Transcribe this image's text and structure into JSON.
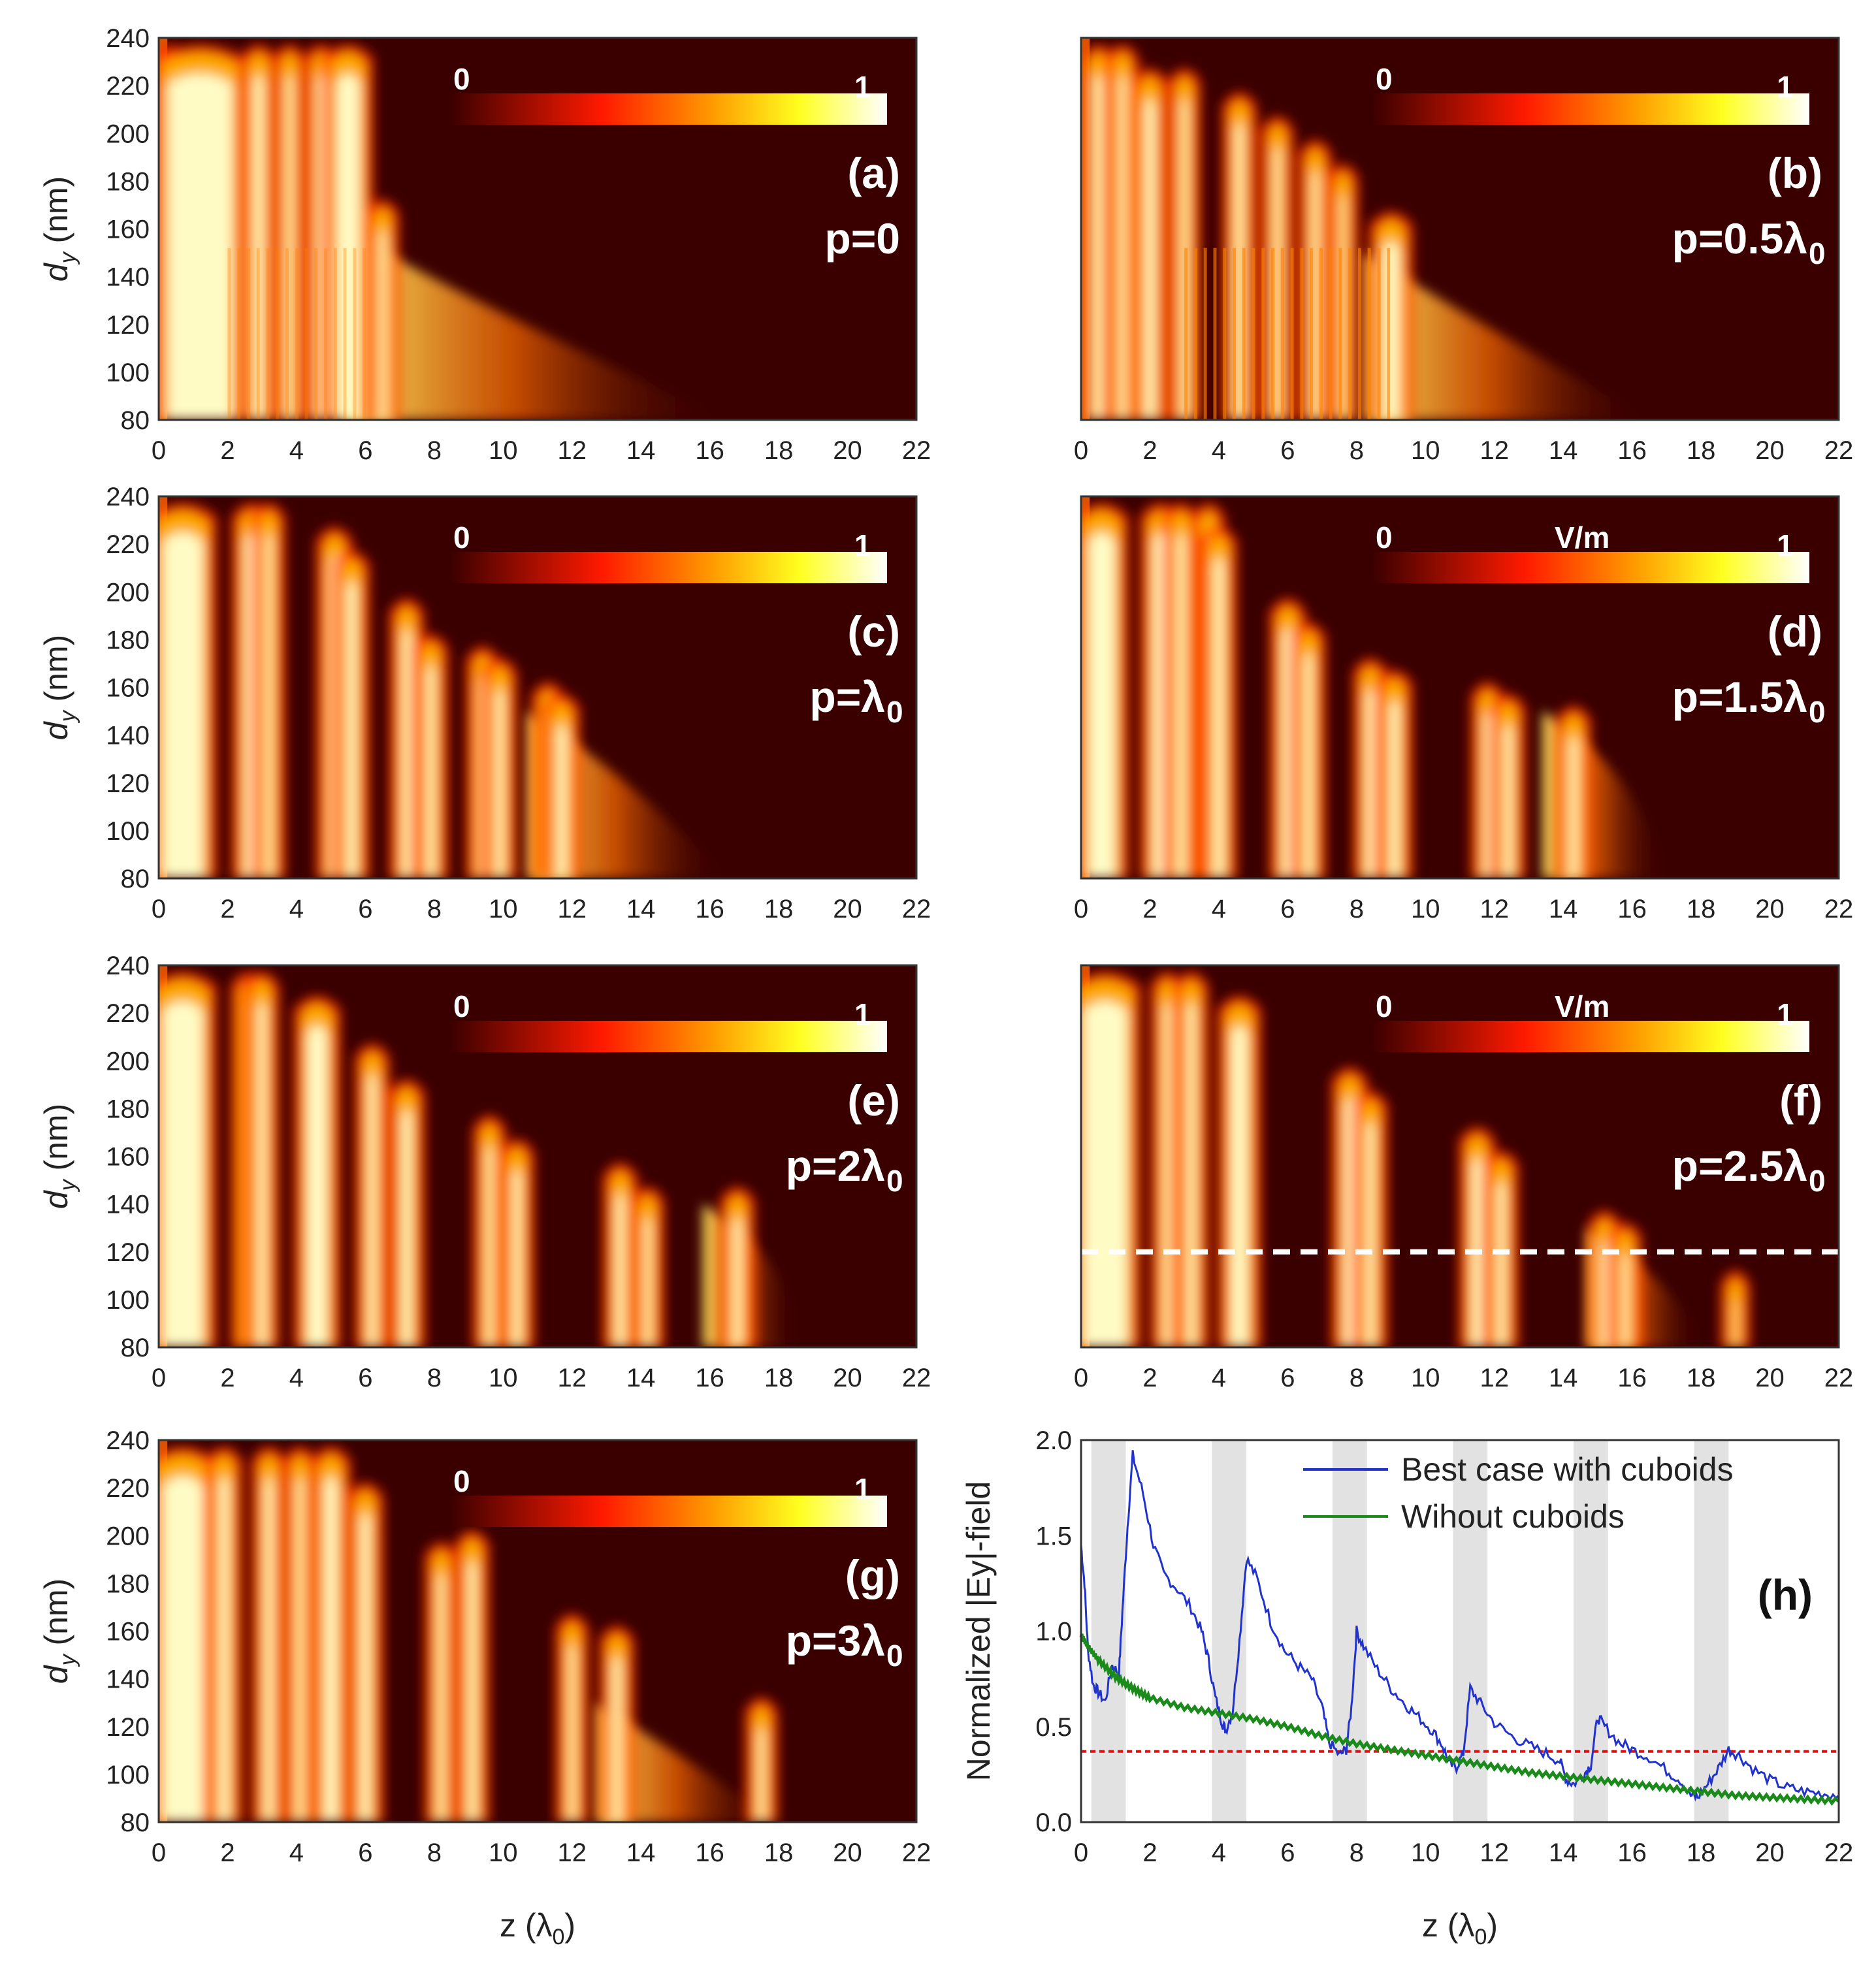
{
  "chart_data": [
    {
      "type": "heatmap",
      "id": "a",
      "label": "(a)",
      "param": "p=0",
      "param_sub": "",
      "xlabel": "",
      "ylabel": "d",
      "ylabel_sub": "y",
      "ylabel_unit": " (nm)",
      "xlim": [
        0,
        22
      ],
      "ylim": [
        80,
        240
      ],
      "xticks": [
        "0",
        "2",
        "4",
        "6",
        "8",
        "10",
        "12",
        "14",
        "16",
        "18",
        "20",
        "22"
      ],
      "yticks": [
        "80",
        "100",
        "120",
        "140",
        "160",
        "180",
        "200",
        "220",
        "240"
      ],
      "colorbar": {
        "min_label": "0",
        "max_label": "1",
        "unit": ""
      }
    },
    {
      "type": "heatmap",
      "id": "b",
      "label": "(b)",
      "param": "p=0.5λ",
      "param_sub": "0",
      "xlabel": "",
      "ylabel": "",
      "ylabel_sub": "",
      "ylabel_unit": "",
      "xlim": [
        0,
        22
      ],
      "ylim": [
        80,
        240
      ],
      "xticks": [
        "0",
        "2",
        "4",
        "6",
        "8",
        "10",
        "12",
        "14",
        "16",
        "18",
        "20",
        "22"
      ],
      "yticks": [],
      "colorbar": {
        "min_label": "0",
        "max_label": "1",
        "unit": ""
      }
    },
    {
      "type": "heatmap",
      "id": "c",
      "label": "(c)",
      "param": "p=λ",
      "param_sub": "0",
      "xlabel": "",
      "ylabel": "d",
      "ylabel_sub": "y",
      "ylabel_unit": " (nm)",
      "xlim": [
        0,
        22
      ],
      "ylim": [
        80,
        240
      ],
      "xticks": [
        "0",
        "2",
        "4",
        "6",
        "8",
        "10",
        "12",
        "14",
        "16",
        "18",
        "20",
        "22"
      ],
      "yticks": [
        "80",
        "100",
        "120",
        "140",
        "160",
        "180",
        "200",
        "220",
        "240"
      ],
      "colorbar": {
        "min_label": "0",
        "max_label": "1",
        "unit": ""
      }
    },
    {
      "type": "heatmap",
      "id": "d",
      "label": "(d)",
      "param": "p=1.5λ",
      "param_sub": "0",
      "xlabel": "",
      "ylabel": "",
      "ylabel_sub": "",
      "ylabel_unit": "",
      "xlim": [
        0,
        22
      ],
      "ylim": [
        80,
        240
      ],
      "xticks": [
        "0",
        "2",
        "4",
        "6",
        "8",
        "10",
        "12",
        "14",
        "16",
        "18",
        "20",
        "22"
      ],
      "yticks": [],
      "colorbar": {
        "min_label": "0",
        "max_label": "1",
        "unit": "V/m"
      }
    },
    {
      "type": "heatmap",
      "id": "e",
      "label": "(e)",
      "param": "p=2λ",
      "param_sub": "0",
      "xlabel": "",
      "ylabel": "d",
      "ylabel_sub": "y",
      "ylabel_unit": " (nm)",
      "xlim": [
        0,
        22
      ],
      "ylim": [
        80,
        240
      ],
      "xticks": [
        "0",
        "2",
        "4",
        "6",
        "8",
        "10",
        "12",
        "14",
        "16",
        "18",
        "20",
        "22"
      ],
      "yticks": [
        "80",
        "100",
        "120",
        "140",
        "160",
        "180",
        "200",
        "220",
        "240"
      ],
      "colorbar": {
        "min_label": "0",
        "max_label": "1",
        "unit": ""
      }
    },
    {
      "type": "heatmap",
      "id": "f",
      "label": "(f)",
      "param": "p=2.5λ",
      "param_sub": "0",
      "xlabel": "",
      "ylabel": "",
      "ylabel_sub": "",
      "ylabel_unit": "",
      "xlim": [
        0,
        22
      ],
      "ylim": [
        80,
        240
      ],
      "xticks": [
        "0",
        "2",
        "4",
        "6",
        "8",
        "10",
        "12",
        "14",
        "16",
        "18",
        "20",
        "22"
      ],
      "yticks": [],
      "colorbar": {
        "min_label": "0",
        "max_label": "1",
        "unit": "V/m"
      },
      "dashed_line_dy": 120
    },
    {
      "type": "heatmap",
      "id": "g",
      "label": "(g)",
      "param": "p=3λ",
      "param_sub": "0",
      "xlabel": "z (λ",
      "xlabel_sub": "0",
      "xlabel_tail": ")",
      "ylabel": "d",
      "ylabel_sub": "y",
      "ylabel_unit": " (nm)",
      "xlim": [
        0,
        22
      ],
      "ylim": [
        80,
        240
      ],
      "xticks": [
        "0",
        "2",
        "4",
        "6",
        "8",
        "10",
        "12",
        "14",
        "16",
        "18",
        "20",
        "22"
      ],
      "yticks": [
        "80",
        "100",
        "120",
        "140",
        "160",
        "180",
        "200",
        "220",
        "240"
      ],
      "colorbar": {
        "min_label": "0",
        "max_label": "1",
        "unit": ""
      }
    },
    {
      "type": "line",
      "id": "h",
      "label": "(h)",
      "xlabel": "z (λ",
      "xlabel_sub": "0",
      "xlabel_tail": ")",
      "ylabel": "Normalized |Ey|-field",
      "xlim": [
        0,
        22
      ],
      "ylim": [
        0,
        2
      ],
      "xticks": [
        "0",
        "2",
        "4",
        "6",
        "8",
        "10",
        "12",
        "14",
        "16",
        "18",
        "20",
        "22"
      ],
      "yticks": [
        "0.0",
        "0.5",
        "1.0",
        "1.5",
        "2.0"
      ],
      "shaded_bands": [
        [
          0.3,
          1.3
        ],
        [
          3.8,
          4.8
        ],
        [
          7.3,
          8.3
        ],
        [
          10.8,
          11.8
        ],
        [
          14.3,
          15.3
        ],
        [
          17.8,
          18.8
        ]
      ],
      "reference_line_y": 0.37,
      "series": [
        {
          "name": "Best case with cuboids",
          "color": "#2233cc",
          "x": [
            0,
            0.1,
            0.2,
            0.35,
            0.5,
            0.7,
            0.9,
            1.1,
            1.2,
            1.35,
            1.5,
            1.8,
            2.1,
            2.4,
            2.8,
            3.2,
            3.5,
            3.7,
            3.9,
            4.1,
            4.2,
            4.4,
            4.6,
            4.8,
            5.1,
            5.5,
            5.9,
            6.3,
            6.7,
            7.0,
            7.2,
            7.5,
            7.7,
            7.85,
            8.0,
            8.2,
            8.6,
            9.0,
            9.4,
            9.8,
            10.2,
            10.5,
            10.7,
            10.9,
            11.1,
            11.3,
            11.6,
            12.0,
            12.5,
            13.0,
            13.5,
            13.9,
            14.1,
            14.3,
            14.6,
            14.8,
            15.0,
            15.2,
            15.6,
            16.0,
            16.5,
            17.0,
            17.4,
            17.7,
            17.9,
            18.2,
            18.5,
            18.8,
            19.1,
            19.5,
            20.0,
            20.5,
            21.0,
            21.5,
            22.0
          ],
          "y": [
            1.45,
            1.25,
            0.9,
            0.72,
            0.68,
            0.63,
            0.82,
            0.78,
            1.1,
            1.55,
            1.92,
            1.72,
            1.45,
            1.3,
            1.22,
            1.12,
            1.0,
            0.85,
            0.65,
            0.52,
            0.48,
            0.58,
            0.95,
            1.38,
            1.28,
            1.05,
            0.9,
            0.82,
            0.75,
            0.6,
            0.42,
            0.35,
            0.38,
            0.6,
            1.0,
            0.92,
            0.8,
            0.7,
            0.62,
            0.55,
            0.48,
            0.4,
            0.3,
            0.29,
            0.36,
            0.7,
            0.62,
            0.52,
            0.45,
            0.4,
            0.36,
            0.32,
            0.22,
            0.2,
            0.25,
            0.3,
            0.55,
            0.5,
            0.42,
            0.38,
            0.34,
            0.27,
            0.22,
            0.14,
            0.13,
            0.2,
            0.28,
            0.38,
            0.35,
            0.28,
            0.22,
            0.18,
            0.16,
            0.15,
            0.14
          ]
        },
        {
          "name": "Wihout cuboids",
          "color": "#1a8a1a",
          "x": [
            0,
            0.2,
            0.5,
            1.0,
            1.5,
            2.0,
            3.0,
            4.0,
            5.0,
            6.0,
            7.0,
            8.0,
            9.0,
            10.0,
            11.0,
            12.0,
            13.0,
            14.0,
            15.0,
            16.0,
            17.0,
            18.0,
            19.0,
            20.0,
            21.0,
            22.0
          ],
          "y": [
            0.98,
            0.92,
            0.85,
            0.76,
            0.7,
            0.65,
            0.6,
            0.57,
            0.54,
            0.5,
            0.45,
            0.41,
            0.38,
            0.35,
            0.32,
            0.29,
            0.26,
            0.24,
            0.22,
            0.2,
            0.18,
            0.16,
            0.14,
            0.13,
            0.12,
            0.11
          ]
        }
      ]
    }
  ]
}
